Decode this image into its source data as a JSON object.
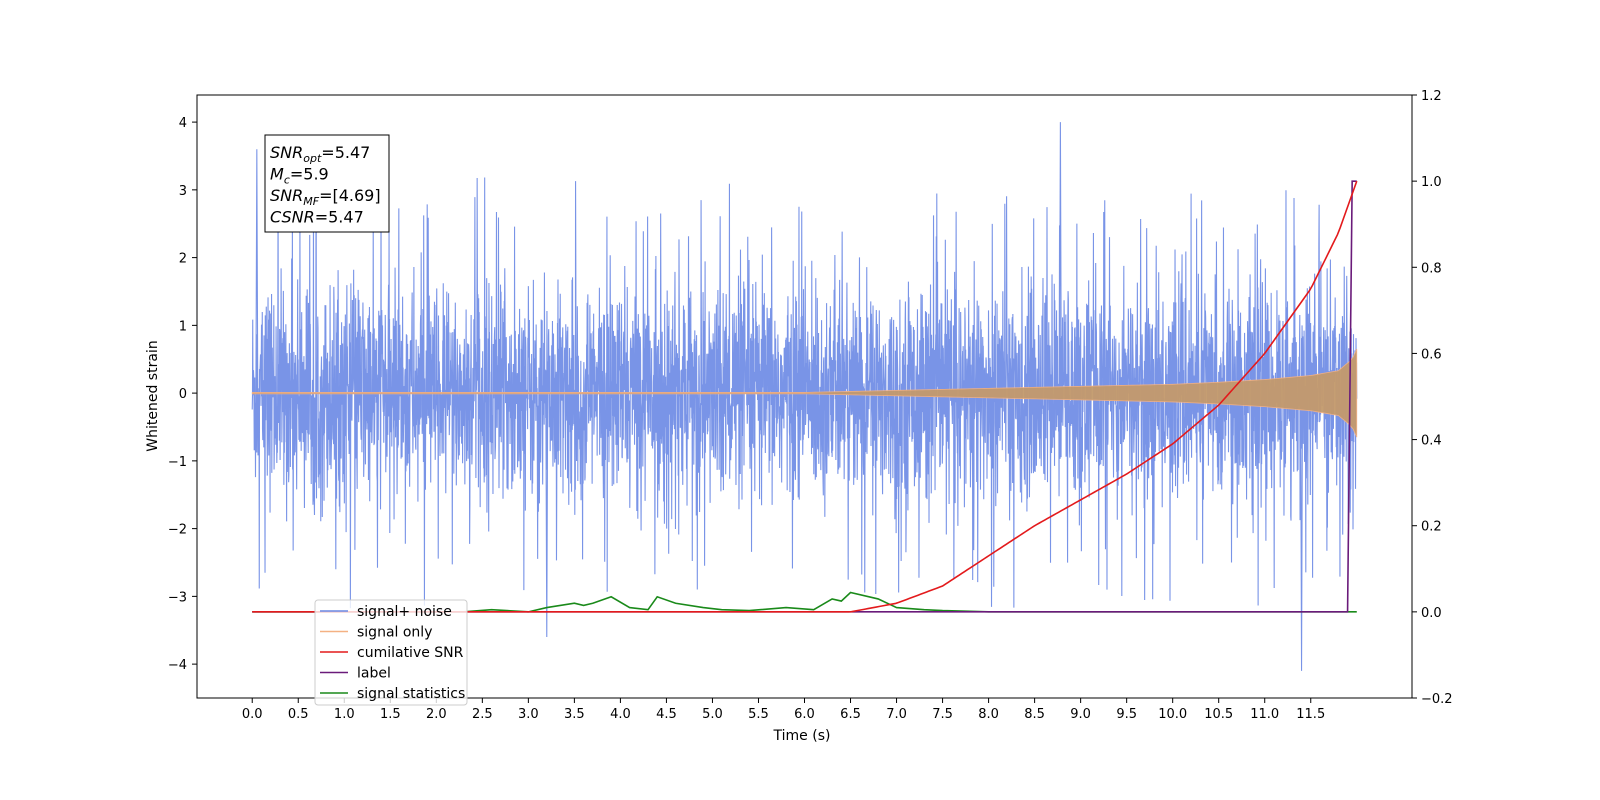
{
  "chart_data": {
    "type": "line",
    "title": "",
    "xlabel": "Time (s)",
    "ylabel_left": "Whitened strain",
    "ylabel_right": "",
    "xlim": [
      -0.6,
      12.6
    ],
    "ylim_left": [
      -4.5,
      4.4
    ],
    "ylim_right": [
      -0.2,
      1.2
    ],
    "x_ticks": [
      "0.0",
      "0.5",
      "1.0",
      "1.5",
      "2.0",
      "2.5",
      "3.0",
      "3.5",
      "4.0",
      "4.5",
      "5.0",
      "5.5",
      "6.0",
      "6.5",
      "7.0",
      "7.5",
      "8.0",
      "8.5",
      "9.0",
      "9.5",
      "10.0",
      "10.5",
      "11.0",
      "11.5"
    ],
    "y_ticks_left": [
      "−4",
      "−3",
      "−2",
      "−1",
      "0",
      "1",
      "2",
      "3",
      "4"
    ],
    "y_ticks_right": [
      "−0.2",
      "0.0",
      "0.2",
      "0.4",
      "0.6",
      "0.8",
      "1.0",
      "1.2"
    ],
    "grid": false,
    "legend_position": "lower-left",
    "annotation": {
      "lines": [
        {
          "name": "SNR",
          "sub": "opt",
          "value": "=5.47"
        },
        {
          "name": "M",
          "sub": "c",
          "value": "=5.9"
        },
        {
          "name": "SNR",
          "sub": "MF",
          "value": "=[4.69]"
        },
        {
          "name": "CSNR",
          "sub": "",
          "value": "=5.47"
        }
      ]
    },
    "series": [
      {
        "name": "signal+ noise",
        "color": "#6a88e4",
        "axis": "left",
        "noise_amplitude": 2.0,
        "peak_max": 4.0,
        "peak_min": -4.1,
        "x_range": [
          0.0,
          12.0
        ]
      },
      {
        "name": "signal only",
        "color": "#f4b183",
        "axis": "left",
        "envelope_x": [
          0.0,
          6.0,
          7.0,
          8.0,
          9.0,
          10.0,
          10.5,
          11.0,
          11.5,
          11.8,
          11.95,
          12.0
        ],
        "envelope_y": [
          0.01,
          0.01,
          0.04,
          0.07,
          0.1,
          0.13,
          0.16,
          0.2,
          0.26,
          0.33,
          0.5,
          0.65
        ]
      },
      {
        "name": "cumilative SNR",
        "color": "#e31a1c",
        "axis": "right",
        "x": [
          0.0,
          6.5,
          7.0,
          7.5,
          8.0,
          8.5,
          9.0,
          9.5,
          10.0,
          10.5,
          11.0,
          11.5,
          11.8,
          12.0
        ],
        "y": [
          0.0,
          0.0,
          0.02,
          0.06,
          0.13,
          0.2,
          0.26,
          0.32,
          0.39,
          0.48,
          0.6,
          0.75,
          0.88,
          1.0
        ]
      },
      {
        "name": "label",
        "color": "#6a1b7a",
        "axis": "right",
        "x": [
          0.0,
          11.9,
          11.95,
          12.0
        ],
        "y": [
          0.0,
          0.0,
          1.0,
          1.0
        ]
      },
      {
        "name": "signal statistics",
        "color": "#1a8a1a",
        "axis": "right",
        "x": [
          0.0,
          2.3,
          2.6,
          3.0,
          3.2,
          3.5,
          3.6,
          3.7,
          3.9,
          4.1,
          4.3,
          4.4,
          4.6,
          4.9,
          5.1,
          5.4,
          5.8,
          6.1,
          6.3,
          6.4,
          6.5,
          6.8,
          7.0,
          7.3,
          7.5,
          7.7,
          8.0,
          12.0
        ],
        "y": [
          0.0,
          0.0,
          0.005,
          0.0,
          0.01,
          0.02,
          0.015,
          0.02,
          0.035,
          0.01,
          0.005,
          0.035,
          0.02,
          0.01,
          0.005,
          0.003,
          0.01,
          0.005,
          0.03,
          0.025,
          0.045,
          0.03,
          0.01,
          0.005,
          0.003,
          0.002,
          0.0,
          0.0
        ]
      }
    ],
    "legend_entries": [
      "signal+ noise",
      "signal only",
      "cumilative SNR",
      "label",
      "signal statistics"
    ]
  }
}
